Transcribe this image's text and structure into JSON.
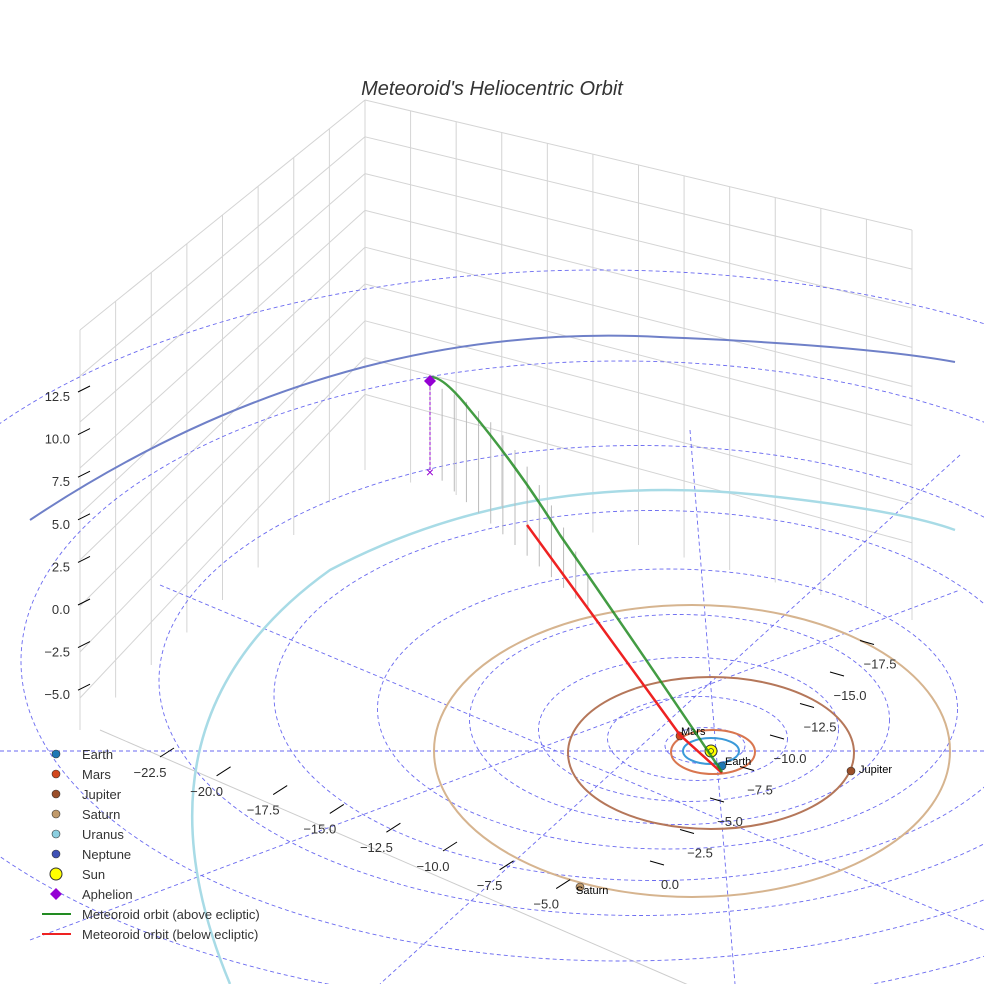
{
  "chart_data": {
    "type": "scatter3d",
    "title": "Meteoroid's Heliocentric Orbit",
    "z_ticks": [
      "12.5",
      "10.0",
      "7.5",
      "5.0",
      "2.5",
      "0.0",
      "−2.5",
      "−5.0"
    ],
    "x_ticks": [
      "−22.5",
      "−20.0",
      "−17.5",
      "−15.0",
      "−12.5",
      "−10.0",
      "−7.5",
      "−5.0"
    ],
    "y_ticks": [
      "0.0",
      "−2.5",
      "−5.0",
      "−7.5",
      "−10.0",
      "−12.5",
      "−15.0",
      "−17.5"
    ],
    "planets": [
      {
        "name": "Earth",
        "color": "#1f77b4",
        "orbit_color": "#3b9ad9",
        "label": "Earth"
      },
      {
        "name": "Mars",
        "color": "#d2481e",
        "orbit_color": "#d9764f",
        "label": "Mars"
      },
      {
        "name": "Jupiter",
        "color": "#9a4f2a",
        "orbit_color": "#b5775a",
        "label": "Jupiter"
      },
      {
        "name": "Saturn",
        "color": "#c19a6b",
        "orbit_color": "#d6b48f",
        "label": "Saturn"
      },
      {
        "name": "Uranus",
        "color": "#8ccfe0",
        "orbit_color": "#a8dbe6"
      },
      {
        "name": "Neptune",
        "color": "#3f51b5",
        "orbit_color": "#6f80c8"
      }
    ],
    "legend": [
      {
        "label": "Earth",
        "marker": "circle",
        "color": "#1f77b4"
      },
      {
        "label": "Mars",
        "marker": "circle",
        "color": "#d2481e"
      },
      {
        "label": "Jupiter",
        "marker": "circle",
        "color": "#9a4f2a"
      },
      {
        "label": "Saturn",
        "marker": "circle",
        "color": "#c19a6b"
      },
      {
        "label": "Uranus",
        "marker": "circle",
        "color": "#8ccfe0"
      },
      {
        "label": "Neptune",
        "marker": "circle",
        "color": "#3f51b5"
      },
      {
        "label": "Sun",
        "marker": "circle-large",
        "color": "#ffff00"
      },
      {
        "label": "Aphelion",
        "marker": "diamond",
        "color": "#9400d3"
      },
      {
        "label": "Meteoroid orbit (above ecliptic)",
        "marker": "line",
        "color": "#228b22"
      },
      {
        "label": "Meteoroid orbit (below ecliptic)",
        "marker": "line",
        "color": "#ee2222"
      }
    ],
    "legend_position": "bottom-left"
  }
}
